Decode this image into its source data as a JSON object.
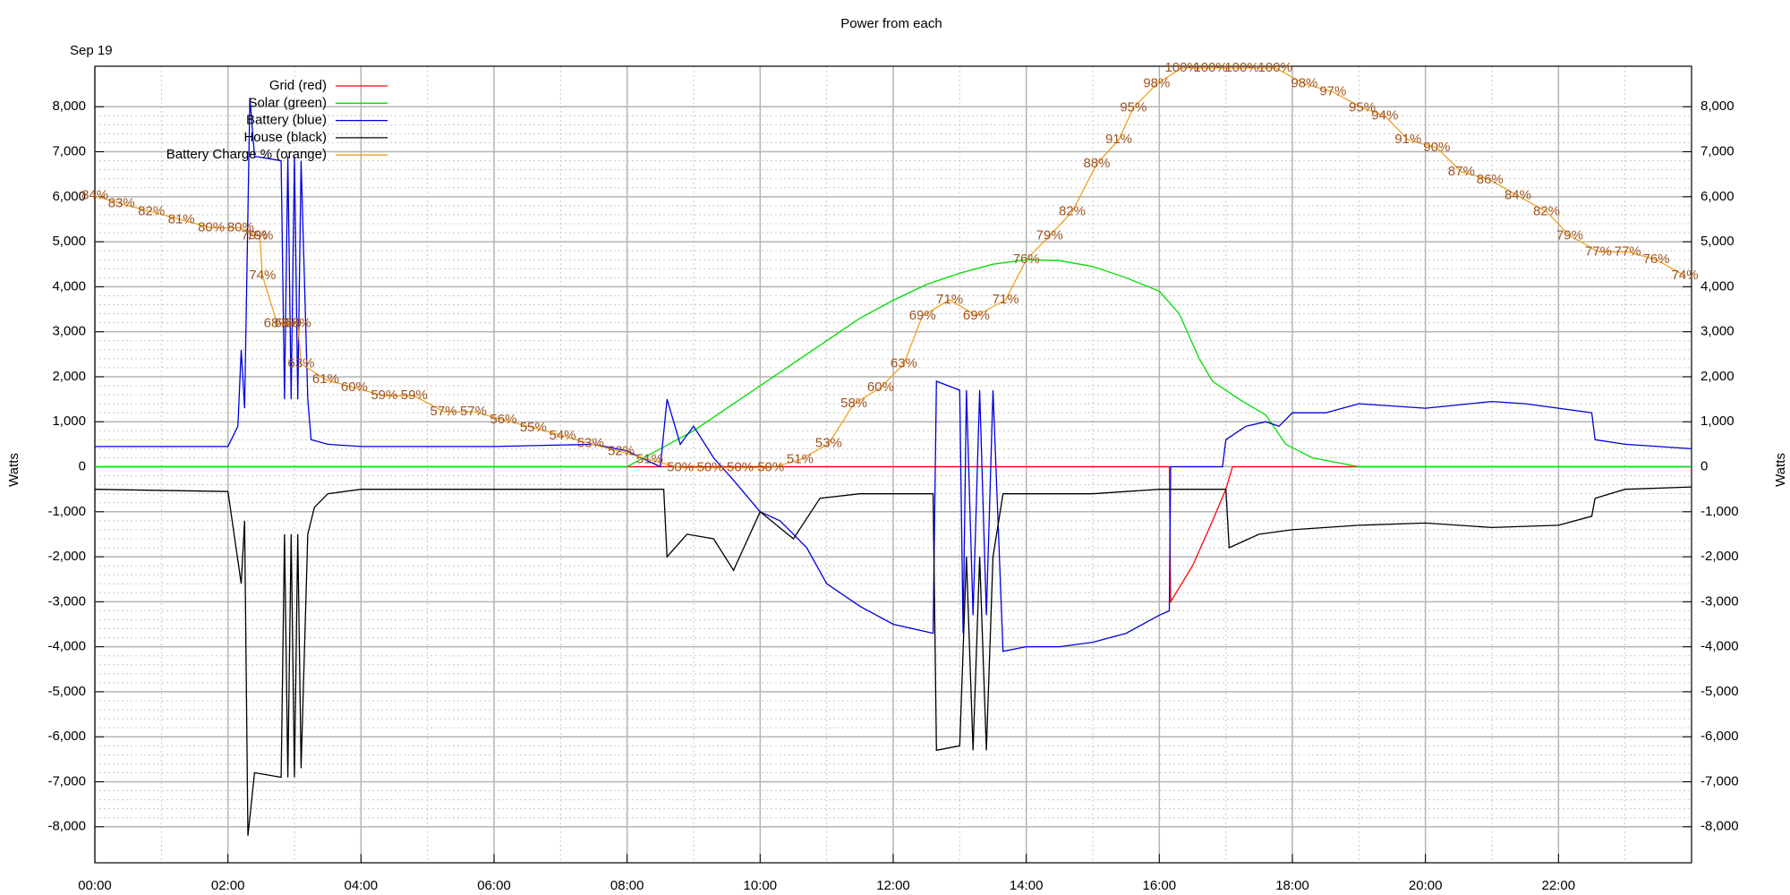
{
  "chart_data": {
    "type": "line",
    "title": "Power from each",
    "subtitle": "Sep 19",
    "y_label": "Watts",
    "xlim": [
      0,
      24
    ],
    "xticks": [
      {
        "value": 0,
        "label": "00:00"
      },
      {
        "value": 2,
        "label": "02:00"
      },
      {
        "value": 4,
        "label": "04:00"
      },
      {
        "value": 6,
        "label": "06:00"
      },
      {
        "value": 8,
        "label": "08:00"
      },
      {
        "value": 10,
        "label": "10:00"
      },
      {
        "value": 12,
        "label": "12:00"
      },
      {
        "value": 14,
        "label": "14:00"
      },
      {
        "value": 16,
        "label": "16:00"
      },
      {
        "value": 18,
        "label": "18:00"
      },
      {
        "value": 20,
        "label": "20:00"
      },
      {
        "value": 22,
        "label": "22:00"
      }
    ],
    "ylim": [
      -8800,
      8900
    ],
    "yticks": [
      {
        "value": -8000,
        "label": "-8,000"
      },
      {
        "value": -7000,
        "label": "-7,000"
      },
      {
        "value": -6000,
        "label": "-6,000"
      },
      {
        "value": -5000,
        "label": "-5,000"
      },
      {
        "value": -4000,
        "label": "-4,000"
      },
      {
        "value": -3000,
        "label": "-3,000"
      },
      {
        "value": -2000,
        "label": "-2,000"
      },
      {
        "value": -1000,
        "label": "-1,000"
      },
      0,
      {
        "value": 1000,
        "label": "1,000"
      },
      {
        "value": 2000,
        "label": "2,000"
      },
      {
        "value": 3000,
        "label": "3,000"
      },
      {
        "value": 4000,
        "label": "4,000"
      },
      {
        "value": 5000,
        "label": "5,000"
      },
      {
        "value": 6000,
        "label": "6,000"
      },
      {
        "value": 7000,
        "label": "7,000"
      },
      {
        "value": 8000,
        "label": "8,000"
      }
    ],
    "y2lim": [
      0.6,
      100.2
    ],
    "grid": true,
    "legend": "upper left",
    "series": [
      {
        "name": "Grid (red)",
        "color": "#ff0000",
        "x": [
          0,
          16.15,
          16.17,
          16.5,
          16.8,
          17.0,
          17.1,
          24
        ],
        "values": [
          0,
          0,
          -3000,
          -2200,
          -1200,
          -500,
          0,
          0
        ]
      },
      {
        "name": "Solar (green)",
        "color": "#00dd00",
        "x": [
          0,
          8.0,
          8.5,
          9,
          9.5,
          10,
          10.5,
          11,
          11.5,
          12,
          12.5,
          13,
          13.5,
          14,
          14.5,
          15,
          15.5,
          16,
          16.3,
          16.6,
          16.8,
          17.2,
          17.6,
          17.9,
          18.3,
          19,
          24
        ],
        "values": [
          0,
          0,
          400,
          800,
          1300,
          1800,
          2300,
          2800,
          3300,
          3700,
          4050,
          4300,
          4500,
          4600,
          4580,
          4450,
          4200,
          3900,
          3400,
          2400,
          1900,
          1500,
          1150,
          500,
          200,
          0,
          0
        ]
      },
      {
        "name": "Battery (blue)",
        "color": "#0000dd",
        "x": [
          0,
          2.0,
          2.15,
          2.2,
          2.25,
          2.33,
          2.4,
          2.8,
          2.85,
          2.9,
          2.95,
          3.0,
          3.05,
          3.1,
          3.2,
          3.25,
          3.5,
          4,
          6,
          7.5,
          8.0,
          8.5,
          8.6,
          8.8,
          9.0,
          9.3,
          9.6,
          10.0,
          10.3,
          10.7,
          11,
          11.5,
          12,
          12.6,
          12.65,
          13.0,
          13.05,
          13.1,
          13.2,
          13.3,
          13.4,
          13.5,
          13.65,
          14,
          14.5,
          15,
          15.5,
          16.0,
          16.15,
          16.17,
          16.95,
          17.0,
          17.3,
          17.6,
          17.8,
          18.0,
          18.5,
          19,
          20,
          21,
          21.5,
          22.0,
          22.5,
          22.55,
          23,
          24
        ],
        "values": [
          450,
          450,
          900,
          2600,
          1300,
          8200,
          6900,
          6800,
          1500,
          6900,
          1500,
          6900,
          1500,
          6800,
          1500,
          600,
          500,
          450,
          450,
          500,
          350,
          0,
          1500,
          500,
          900,
          200,
          -300,
          -1000,
          -1200,
          -1800,
          -2600,
          -3100,
          -3500,
          -3700,
          1900,
          1700,
          -3700,
          1700,
          -3300,
          1700,
          -3300,
          1700,
          -4100,
          -4000,
          -4000,
          -3900,
          -3700,
          -3300,
          -3200,
          0,
          0,
          600,
          900,
          1000,
          900,
          1200,
          1200,
          1400,
          1300,
          1450,
          1400,
          1300,
          1200,
          600,
          500,
          400
        ]
      },
      {
        "name": "House (black)",
        "color": "#000000",
        "x": [
          0,
          2.0,
          2.2,
          2.25,
          2.3,
          2.4,
          2.8,
          2.85,
          2.9,
          2.95,
          3.0,
          3.05,
          3.1,
          3.2,
          3.3,
          3.5,
          4,
          6,
          8.0,
          8.55,
          8.6,
          8.9,
          9.3,
          9.6,
          10.0,
          10.5,
          10.9,
          11.5,
          12,
          12.6,
          12.65,
          13.0,
          13.1,
          13.2,
          13.3,
          13.4,
          13.5,
          13.65,
          14,
          15,
          16,
          17.0,
          17.05,
          17.5,
          18,
          19,
          20,
          21,
          22,
          22.5,
          22.55,
          23,
          24
        ],
        "values": [
          -500,
          -550,
          -2600,
          -1200,
          -8200,
          -6800,
          -6900,
          -1500,
          -6900,
          -1500,
          -6900,
          -1500,
          -6700,
          -1500,
          -900,
          -600,
          -500,
          -500,
          -500,
          -500,
          -2000,
          -1500,
          -1600,
          -2300,
          -1000,
          -1600,
          -700,
          -600,
          -600,
          -600,
          -6300,
          -6200,
          -2000,
          -6300,
          -2000,
          -6300,
          -2000,
          -600,
          -600,
          -600,
          -500,
          -500,
          -1800,
          -1500,
          -1400,
          -1300,
          -1250,
          -1350,
          -1300,
          -1100,
          -700,
          -500,
          -450
        ]
      },
      {
        "name": "Battery Charge % (orange)",
        "color": "#f0a020",
        "label_color": "#a0521d",
        "axis": "y2",
        "x": [
          0.0,
          0.4,
          0.85,
          1.3,
          1.75,
          2.19,
          2.4,
          2.48,
          2.52,
          2.74,
          2.9,
          3.05,
          3.1,
          3.47,
          3.9,
          4.35,
          4.8,
          5.24,
          5.69,
          6.14,
          6.59,
          7.03,
          7.45,
          7.91,
          8.34,
          8.8,
          9.25,
          9.7,
          10.16,
          10.6,
          11.03,
          11.41,
          11.81,
          12.16,
          12.44,
          12.85,
          13.25,
          13.69,
          14.0,
          14.35,
          14.69,
          15.06,
          15.39,
          15.61,
          15.96,
          16.34,
          16.77,
          17.24,
          17.74,
          18.18,
          18.61,
          19.05,
          19.39,
          19.74,
          20.17,
          20.54,
          20.97,
          21.39,
          21.82,
          22.17,
          22.6,
          23.04,
          23.47,
          23.9
        ],
        "values": [
          84,
          83,
          82,
          81,
          80,
          80,
          79,
          79,
          74,
          68,
          68,
          68,
          63,
          61,
          60,
          59,
          59,
          57,
          57,
          56,
          55,
          54,
          53,
          52,
          51,
          50,
          50,
          50,
          50,
          51,
          53,
          58,
          60,
          63,
          69,
          71,
          69,
          71,
          76,
          79,
          82,
          88,
          91,
          95,
          98,
          100,
          100,
          100,
          100,
          98,
          97,
          95,
          94,
          91,
          90,
          87,
          86,
          84,
          82,
          79,
          77,
          77,
          76,
          74
        ],
        "value_labels": [
          "84%",
          "83%",
          "82%",
          "81%",
          "80%",
          "80%",
          "79%",
          "79%",
          "74%",
          "68%",
          "68%",
          "68%",
          "63%",
          "61%",
          "60%",
          "59%",
          "59%",
          "57%",
          "57%",
          "56%",
          "55%",
          "54%",
          "53%",
          "52%",
          "51%",
          "50%",
          "50%",
          "50%",
          "50%",
          "51%",
          "53%",
          "58%",
          "60%",
          "63%",
          "69%",
          "71%",
          "69%",
          "71%",
          "76%",
          "79%",
          "82%",
          "88%",
          "91%",
          "95%",
          "98%",
          "100%",
          "100%",
          "100%",
          "100%",
          "98%",
          "97%",
          "95%",
          "94%",
          "91%",
          "90%",
          "87%",
          "86%",
          "84%",
          "82%",
          "79%",
          "77%",
          "77%",
          "76%",
          "74%"
        ]
      }
    ]
  }
}
